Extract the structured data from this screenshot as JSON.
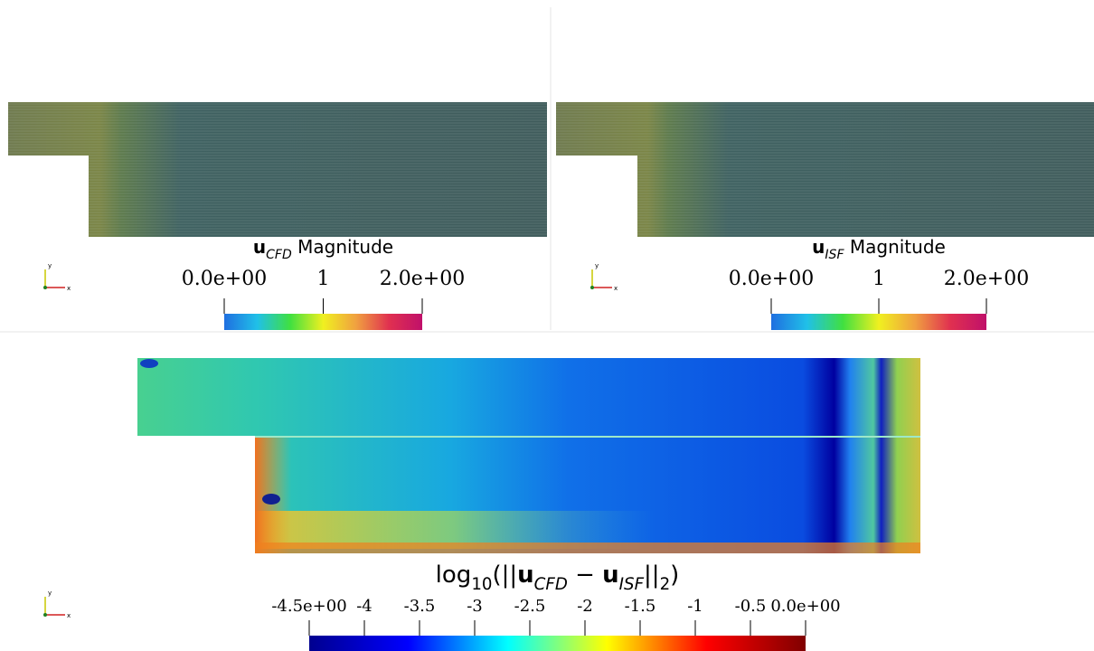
{
  "orientation_axes": {
    "x": "x",
    "y": "y"
  },
  "panels": [
    {
      "colorbar": {
        "title": [
          {
            "text": "u",
            "style": "bold"
          },
          {
            "text": "CFD",
            "style": "sub"
          },
          {
            "text": " Magnitude",
            "style": "normal"
          }
        ],
        "range": [
          0,
          2
        ],
        "ticks": [
          {
            "value": 0,
            "label": "0.0e+00"
          },
          1,
          {
            "value": 2,
            "label": "2.0e+00"
          }
        ]
      }
    },
    {
      "colorbar": {
        "title": [
          {
            "text": "u",
            "style": "bold"
          },
          {
            "text": "ISF",
            "style": "sub"
          },
          {
            "text": " Magnitude",
            "style": "normal"
          }
        ],
        "range": [
          0,
          2
        ],
        "ticks": [
          {
            "value": 0,
            "label": "0.0e+00"
          },
          1,
          {
            "value": 2,
            "label": "2.0e+00"
          }
        ]
      }
    }
  ],
  "error_panel": {
    "colorbar": {
      "title": [
        {
          "text": "log",
          "style": "normal"
        },
        {
          "text": "10",
          "style": "sub-upright"
        },
        {
          "text": "(||",
          "style": "normal"
        },
        {
          "text": "u",
          "style": "bold"
        },
        {
          "text": "CFD",
          "style": "sub"
        },
        {
          "text": " − ",
          "style": "normal"
        },
        {
          "text": "u",
          "style": "bold"
        },
        {
          "text": "ISF",
          "style": "sub"
        },
        {
          "text": "||",
          "style": "normal"
        },
        {
          "text": "2",
          "style": "sub-upright"
        },
        {
          "text": ")",
          "style": "normal"
        }
      ],
      "range": [
        -4.5,
        0
      ],
      "ticks": [
        {
          "value": -4.5,
          "label": "-4.5e+00"
        },
        -4,
        -3.5,
        -3,
        -2.5,
        -2,
        -1.5,
        -1,
        -0.5,
        {
          "value": 0,
          "label": "0.0e+00"
        }
      ]
    }
  }
}
